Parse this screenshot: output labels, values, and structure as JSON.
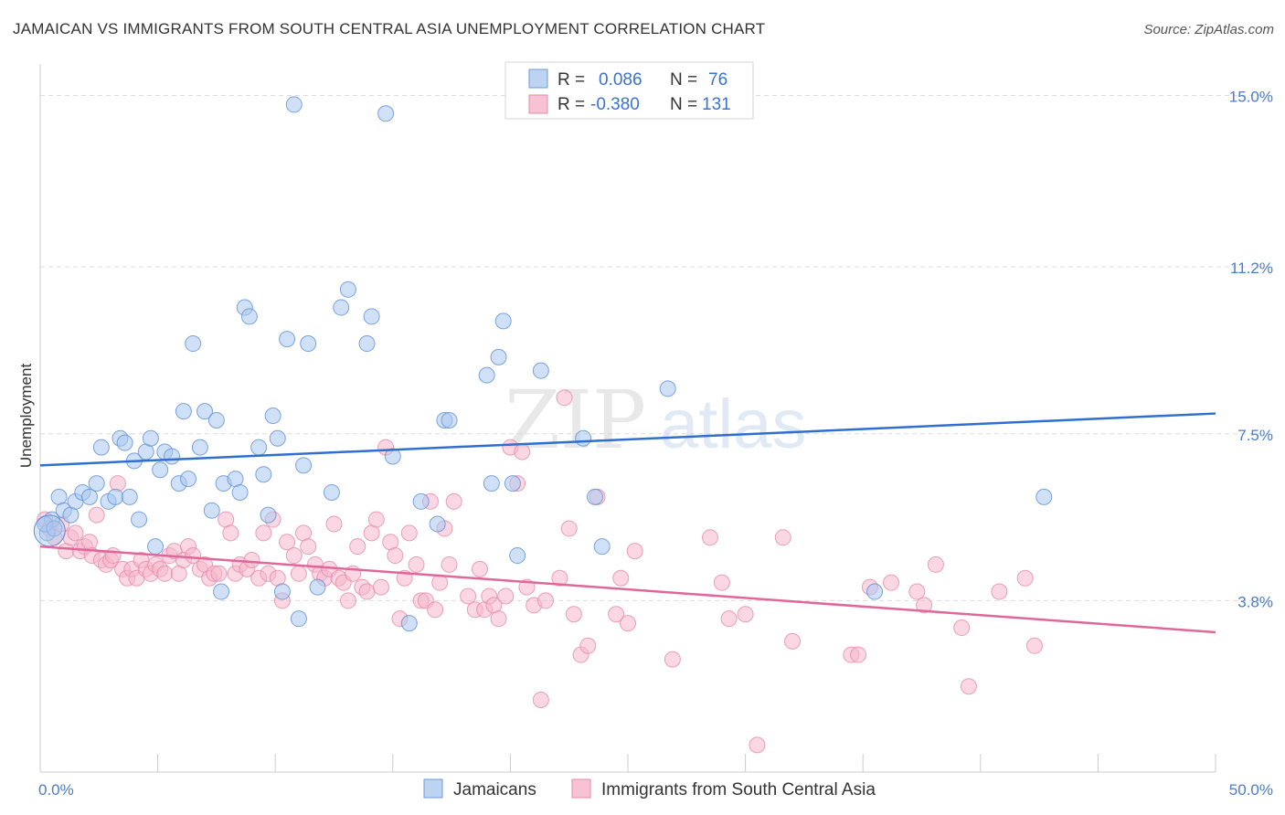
{
  "title": "JAMAICAN VS IMMIGRANTS FROM SOUTH CENTRAL ASIA UNEMPLOYMENT CORRELATION CHART",
  "source": "Source: ZipAtlas.com",
  "watermark": "ZIPatlas",
  "colors": {
    "blue": "#4a86d9",
    "blue_fill": "#a9c8f0",
    "pink": "#e05b8f",
    "pink_fill": "#f5b6cb",
    "axis_label": "#4a7cc9"
  },
  "legend_box": {
    "rows": [
      {
        "r_label": "R =",
        "r_value": "0.086",
        "n_label": "N =",
        "n_value": "76"
      },
      {
        "r_label": "R =",
        "r_value": "-0.380",
        "n_label": "N =",
        "n_value": "131"
      }
    ]
  },
  "bottom_legend": [
    "Jamaicans",
    "Immigrants from South Central Asia"
  ],
  "chart_data": {
    "type": "scatter",
    "title": "JAMAICAN VS IMMIGRANTS FROM SOUTH CENTRAL ASIA UNEMPLOYMENT CORRELATION CHART",
    "xlabel": "",
    "ylabel": "Unemployment",
    "xlim": [
      0,
      50
    ],
    "ylim": [
      0,
      15.7
    ],
    "x_tick_labels": [
      "0.0%",
      "50.0%"
    ],
    "y_ticks": [
      3.8,
      7.5,
      11.2,
      15.0
    ],
    "y_tick_labels": [
      "3.8%",
      "7.5%",
      "11.2%",
      "15.0%"
    ],
    "grid": true,
    "legend_position": "top-center",
    "series": [
      {
        "name": "Jamaicans",
        "r": 0.086,
        "n": 76,
        "trend": {
          "x": [
            0,
            50
          ],
          "y": [
            6.8,
            7.95
          ]
        },
        "points": [
          [
            0.3,
            5.3
          ],
          [
            0.5,
            5.6
          ],
          [
            0.8,
            6.1
          ],
          [
            1.0,
            5.8
          ],
          [
            1.3,
            5.7
          ],
          [
            1.5,
            6.0
          ],
          [
            1.8,
            6.2
          ],
          [
            2.1,
            6.1
          ],
          [
            2.4,
            6.4
          ],
          [
            2.6,
            7.2
          ],
          [
            2.9,
            6.0
          ],
          [
            3.2,
            6.1
          ],
          [
            3.4,
            7.4
          ],
          [
            3.6,
            7.3
          ],
          [
            3.8,
            6.1
          ],
          [
            4.0,
            6.9
          ],
          [
            4.2,
            5.6
          ],
          [
            4.5,
            7.1
          ],
          [
            4.7,
            7.4
          ],
          [
            4.9,
            5.0
          ],
          [
            5.1,
            6.7
          ],
          [
            5.3,
            7.1
          ],
          [
            5.6,
            7.0
          ],
          [
            5.9,
            6.4
          ],
          [
            6.1,
            8.0
          ],
          [
            6.3,
            6.5
          ],
          [
            6.5,
            9.5
          ],
          [
            6.8,
            7.2
          ],
          [
            7.0,
            8.0
          ],
          [
            7.3,
            5.8
          ],
          [
            7.5,
            7.8
          ],
          [
            7.7,
            4.0
          ],
          [
            7.8,
            6.4
          ],
          [
            8.3,
            6.5
          ],
          [
            8.5,
            6.2
          ],
          [
            8.7,
            10.3
          ],
          [
            8.9,
            10.1
          ],
          [
            9.3,
            7.2
          ],
          [
            9.5,
            6.6
          ],
          [
            9.7,
            5.7
          ],
          [
            9.9,
            7.9
          ],
          [
            10.1,
            7.4
          ],
          [
            10.3,
            4.0
          ],
          [
            10.5,
            9.6
          ],
          [
            10.8,
            14.8
          ],
          [
            11.0,
            3.4
          ],
          [
            11.2,
            6.8
          ],
          [
            11.4,
            9.5
          ],
          [
            11.8,
            4.1
          ],
          [
            12.4,
            6.2
          ],
          [
            12.8,
            10.3
          ],
          [
            13.1,
            10.7
          ],
          [
            13.9,
            9.5
          ],
          [
            14.1,
            10.1
          ],
          [
            14.7,
            14.6
          ],
          [
            15.0,
            7.0
          ],
          [
            15.7,
            3.3
          ],
          [
            16.2,
            6.0
          ],
          [
            16.9,
            5.5
          ],
          [
            17.2,
            7.8
          ],
          [
            17.4,
            7.8
          ],
          [
            19.0,
            8.8
          ],
          [
            19.2,
            6.4
          ],
          [
            19.5,
            9.2
          ],
          [
            19.7,
            10.0
          ],
          [
            20.1,
            6.4
          ],
          [
            20.3,
            4.8
          ],
          [
            21.3,
            8.9
          ],
          [
            23.1,
            7.4
          ],
          [
            23.6,
            6.1
          ],
          [
            23.9,
            5.0
          ],
          [
            26.7,
            8.5
          ],
          [
            35.5,
            4.0
          ],
          [
            42.7,
            6.1
          ],
          [
            0.2,
            5.5
          ],
          [
            0.6,
            5.4
          ]
        ]
      },
      {
        "name": "Immigrants from South Central Asia",
        "r": -0.38,
        "n": 131,
        "trend": {
          "x": [
            0,
            50
          ],
          "y": [
            5.0,
            3.1
          ]
        },
        "points": [
          [
            0.2,
            5.6
          ],
          [
            0.4,
            5.4
          ],
          [
            0.6,
            5.2
          ],
          [
            0.9,
            5.5
          ],
          [
            1.1,
            4.9
          ],
          [
            1.3,
            5.2
          ],
          [
            1.5,
            5.3
          ],
          [
            1.7,
            4.9
          ],
          [
            1.9,
            5.0
          ],
          [
            2.1,
            5.1
          ],
          [
            2.2,
            4.8
          ],
          [
            2.4,
            5.7
          ],
          [
            2.6,
            4.7
          ],
          [
            2.8,
            4.6
          ],
          [
            3.0,
            4.7
          ],
          [
            3.1,
            4.8
          ],
          [
            3.3,
            6.4
          ],
          [
            3.5,
            4.5
          ],
          [
            3.7,
            4.3
          ],
          [
            3.9,
            4.5
          ],
          [
            4.1,
            4.3
          ],
          [
            4.3,
            4.7
          ],
          [
            4.5,
            4.5
          ],
          [
            4.7,
            4.4
          ],
          [
            4.9,
            4.6
          ],
          [
            5.1,
            4.5
          ],
          [
            5.3,
            4.4
          ],
          [
            5.5,
            4.8
          ],
          [
            5.7,
            4.9
          ],
          [
            5.9,
            4.4
          ],
          [
            6.1,
            4.7
          ],
          [
            6.3,
            5.0
          ],
          [
            6.5,
            4.8
          ],
          [
            6.8,
            4.5
          ],
          [
            7.0,
            4.6
          ],
          [
            7.2,
            4.3
          ],
          [
            7.4,
            4.4
          ],
          [
            7.6,
            4.4
          ],
          [
            7.9,
            5.6
          ],
          [
            8.1,
            5.3
          ],
          [
            8.3,
            4.4
          ],
          [
            8.5,
            4.6
          ],
          [
            8.8,
            4.5
          ],
          [
            9.0,
            4.7
          ],
          [
            9.3,
            4.3
          ],
          [
            9.5,
            5.3
          ],
          [
            9.7,
            4.4
          ],
          [
            9.9,
            5.6
          ],
          [
            10.1,
            4.3
          ],
          [
            10.3,
            3.8
          ],
          [
            10.5,
            5.1
          ],
          [
            10.8,
            4.8
          ],
          [
            11.0,
            4.4
          ],
          [
            11.2,
            5.3
          ],
          [
            11.4,
            5.0
          ],
          [
            11.7,
            4.6
          ],
          [
            11.9,
            4.4
          ],
          [
            12.1,
            4.3
          ],
          [
            12.3,
            4.5
          ],
          [
            12.5,
            5.5
          ],
          [
            12.7,
            4.3
          ],
          [
            12.9,
            4.2
          ],
          [
            13.1,
            3.8
          ],
          [
            13.3,
            4.4
          ],
          [
            13.5,
            5.0
          ],
          [
            13.7,
            4.1
          ],
          [
            13.9,
            4.0
          ],
          [
            14.1,
            5.3
          ],
          [
            14.3,
            5.6
          ],
          [
            14.5,
            4.1
          ],
          [
            14.7,
            7.2
          ],
          [
            14.9,
            5.1
          ],
          [
            15.1,
            4.8
          ],
          [
            15.3,
            3.4
          ],
          [
            15.5,
            4.3
          ],
          [
            15.7,
            5.3
          ],
          [
            16.0,
            4.6
          ],
          [
            16.2,
            3.8
          ],
          [
            16.4,
            3.8
          ],
          [
            16.6,
            6.0
          ],
          [
            16.8,
            3.6
          ],
          [
            17.0,
            4.2
          ],
          [
            17.2,
            5.4
          ],
          [
            17.4,
            4.6
          ],
          [
            17.6,
            6.0
          ],
          [
            18.2,
            3.9
          ],
          [
            18.5,
            3.6
          ],
          [
            18.7,
            4.5
          ],
          [
            18.9,
            3.6
          ],
          [
            19.1,
            3.9
          ],
          [
            19.3,
            3.7
          ],
          [
            19.5,
            3.4
          ],
          [
            19.8,
            3.9
          ],
          [
            20.0,
            7.2
          ],
          [
            20.3,
            6.4
          ],
          [
            20.5,
            7.1
          ],
          [
            20.7,
            4.1
          ],
          [
            21.0,
            3.7
          ],
          [
            21.3,
            1.6
          ],
          [
            21.5,
            3.8
          ],
          [
            22.1,
            4.3
          ],
          [
            22.3,
            8.3
          ],
          [
            22.5,
            5.4
          ],
          [
            22.7,
            3.5
          ],
          [
            23.0,
            2.6
          ],
          [
            23.3,
            2.8
          ],
          [
            23.7,
            6.1
          ],
          [
            24.5,
            3.5
          ],
          [
            24.7,
            4.3
          ],
          [
            25.0,
            3.3
          ],
          [
            25.3,
            4.9
          ],
          [
            26.9,
            2.5
          ],
          [
            28.5,
            5.2
          ],
          [
            29.0,
            4.2
          ],
          [
            29.3,
            3.4
          ],
          [
            30.0,
            3.5
          ],
          [
            30.5,
            0.6
          ],
          [
            31.6,
            5.2
          ],
          [
            32.0,
            2.9
          ],
          [
            34.5,
            2.6
          ],
          [
            34.8,
            2.6
          ],
          [
            35.3,
            4.1
          ],
          [
            36.2,
            4.2
          ],
          [
            37.3,
            4.0
          ],
          [
            37.6,
            3.7
          ],
          [
            38.1,
            4.6
          ],
          [
            39.2,
            3.2
          ],
          [
            39.5,
            1.9
          ],
          [
            40.8,
            4.0
          ],
          [
            41.9,
            4.3
          ],
          [
            42.3,
            2.8
          ]
        ]
      }
    ]
  }
}
